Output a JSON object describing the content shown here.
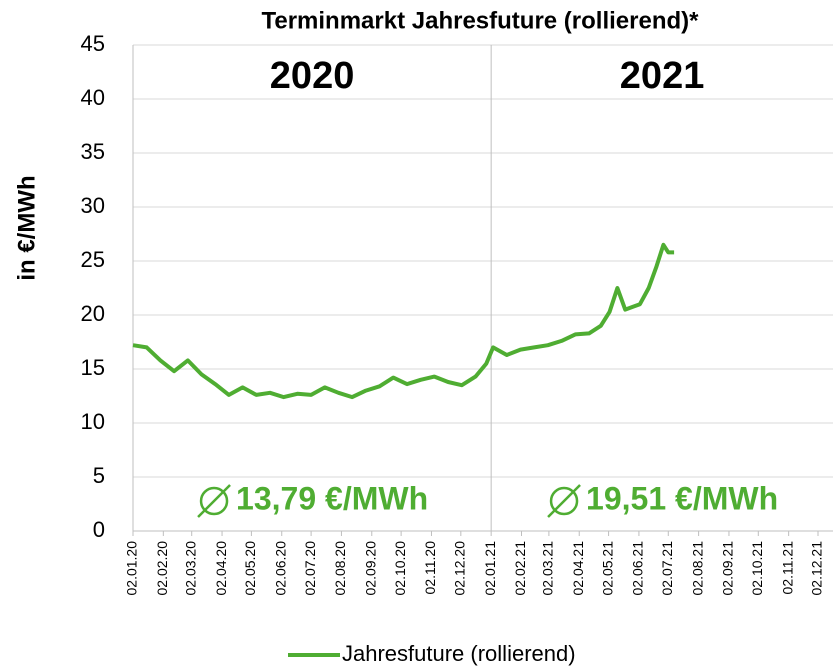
{
  "chart_data": {
    "type": "line",
    "title": "Terminmarkt Jahresfuture (rollierend)*",
    "y_label": "in €/MWh",
    "x": [
      "02.01.20",
      "16.01.20",
      "30.01.20",
      "13.02.20",
      "27.02.20",
      "12.03.20",
      "26.03.20",
      "09.04.20",
      "23.04.20",
      "07.05.20",
      "21.05.20",
      "04.06.20",
      "18.06.20",
      "02.07.20",
      "16.07.20",
      "30.07.20",
      "13.08.20",
      "27.08.20",
      "10.09.20",
      "24.09.20",
      "08.10.20",
      "22.10.20",
      "05.11.20",
      "19.11.20",
      "03.12.20",
      "17.12.20",
      "28.12.20",
      "04.01.21",
      "18.01.21",
      "01.02.21",
      "15.02.21",
      "01.03.21",
      "15.03.21",
      "29.03.21",
      "12.04.21",
      "24.04.21",
      "03.05.21",
      "11.05.21",
      "19.05.21",
      "03.06.21",
      "12.06.21",
      "20.06.21",
      "27.06.21",
      "02.07.21",
      "08.07.21"
    ],
    "series": [
      {
        "name": "Jahresfuture (rollierend)",
        "color": "#4fad32",
        "values": [
          17.2,
          17.0,
          15.8,
          14.8,
          15.8,
          14.5,
          13.6,
          12.6,
          13.3,
          12.6,
          12.8,
          12.4,
          12.7,
          12.6,
          13.3,
          12.8,
          12.4,
          13.0,
          13.4,
          14.2,
          13.6,
          14.0,
          14.3,
          13.8,
          13.5,
          14.3,
          15.5,
          17.0,
          16.3,
          16.8,
          17.0,
          17.2,
          17.6,
          18.2,
          18.3,
          19.0,
          20.3,
          22.5,
          20.5,
          21.0,
          22.5,
          24.5,
          26.5,
          25.8,
          25.8
        ]
      }
    ],
    "xlim": [
      "02.01.20",
      "02.12.21"
    ],
    "xticks": [
      "02.01.20",
      "02.02.20",
      "02.03.20",
      "02.04.20",
      "02.05.20",
      "02.06.20",
      "02.07.20",
      "02.08.20",
      "02.09.20",
      "02.10.20",
      "02.11.20",
      "02.12.20",
      "02.01.21",
      "02.02.21",
      "02.03.21",
      "02.04.21",
      "02.05.21",
      "02.06.21",
      "02.07.21",
      "02.08.21",
      "02.09.21",
      "02.10.21",
      "02.11.21",
      "02.12.21"
    ],
    "ylim": [
      0,
      45
    ],
    "yticks": [
      0,
      5,
      10,
      15,
      20,
      25,
      30,
      35,
      40,
      45
    ],
    "periods": [
      {
        "name": "2020",
        "average": 13.79,
        "average_label": "13,79 €/MWh"
      },
      {
        "name": "2021",
        "average": 19.51,
        "average_label": "19,51 €/MWh"
      }
    ],
    "legend": "bottom"
  }
}
